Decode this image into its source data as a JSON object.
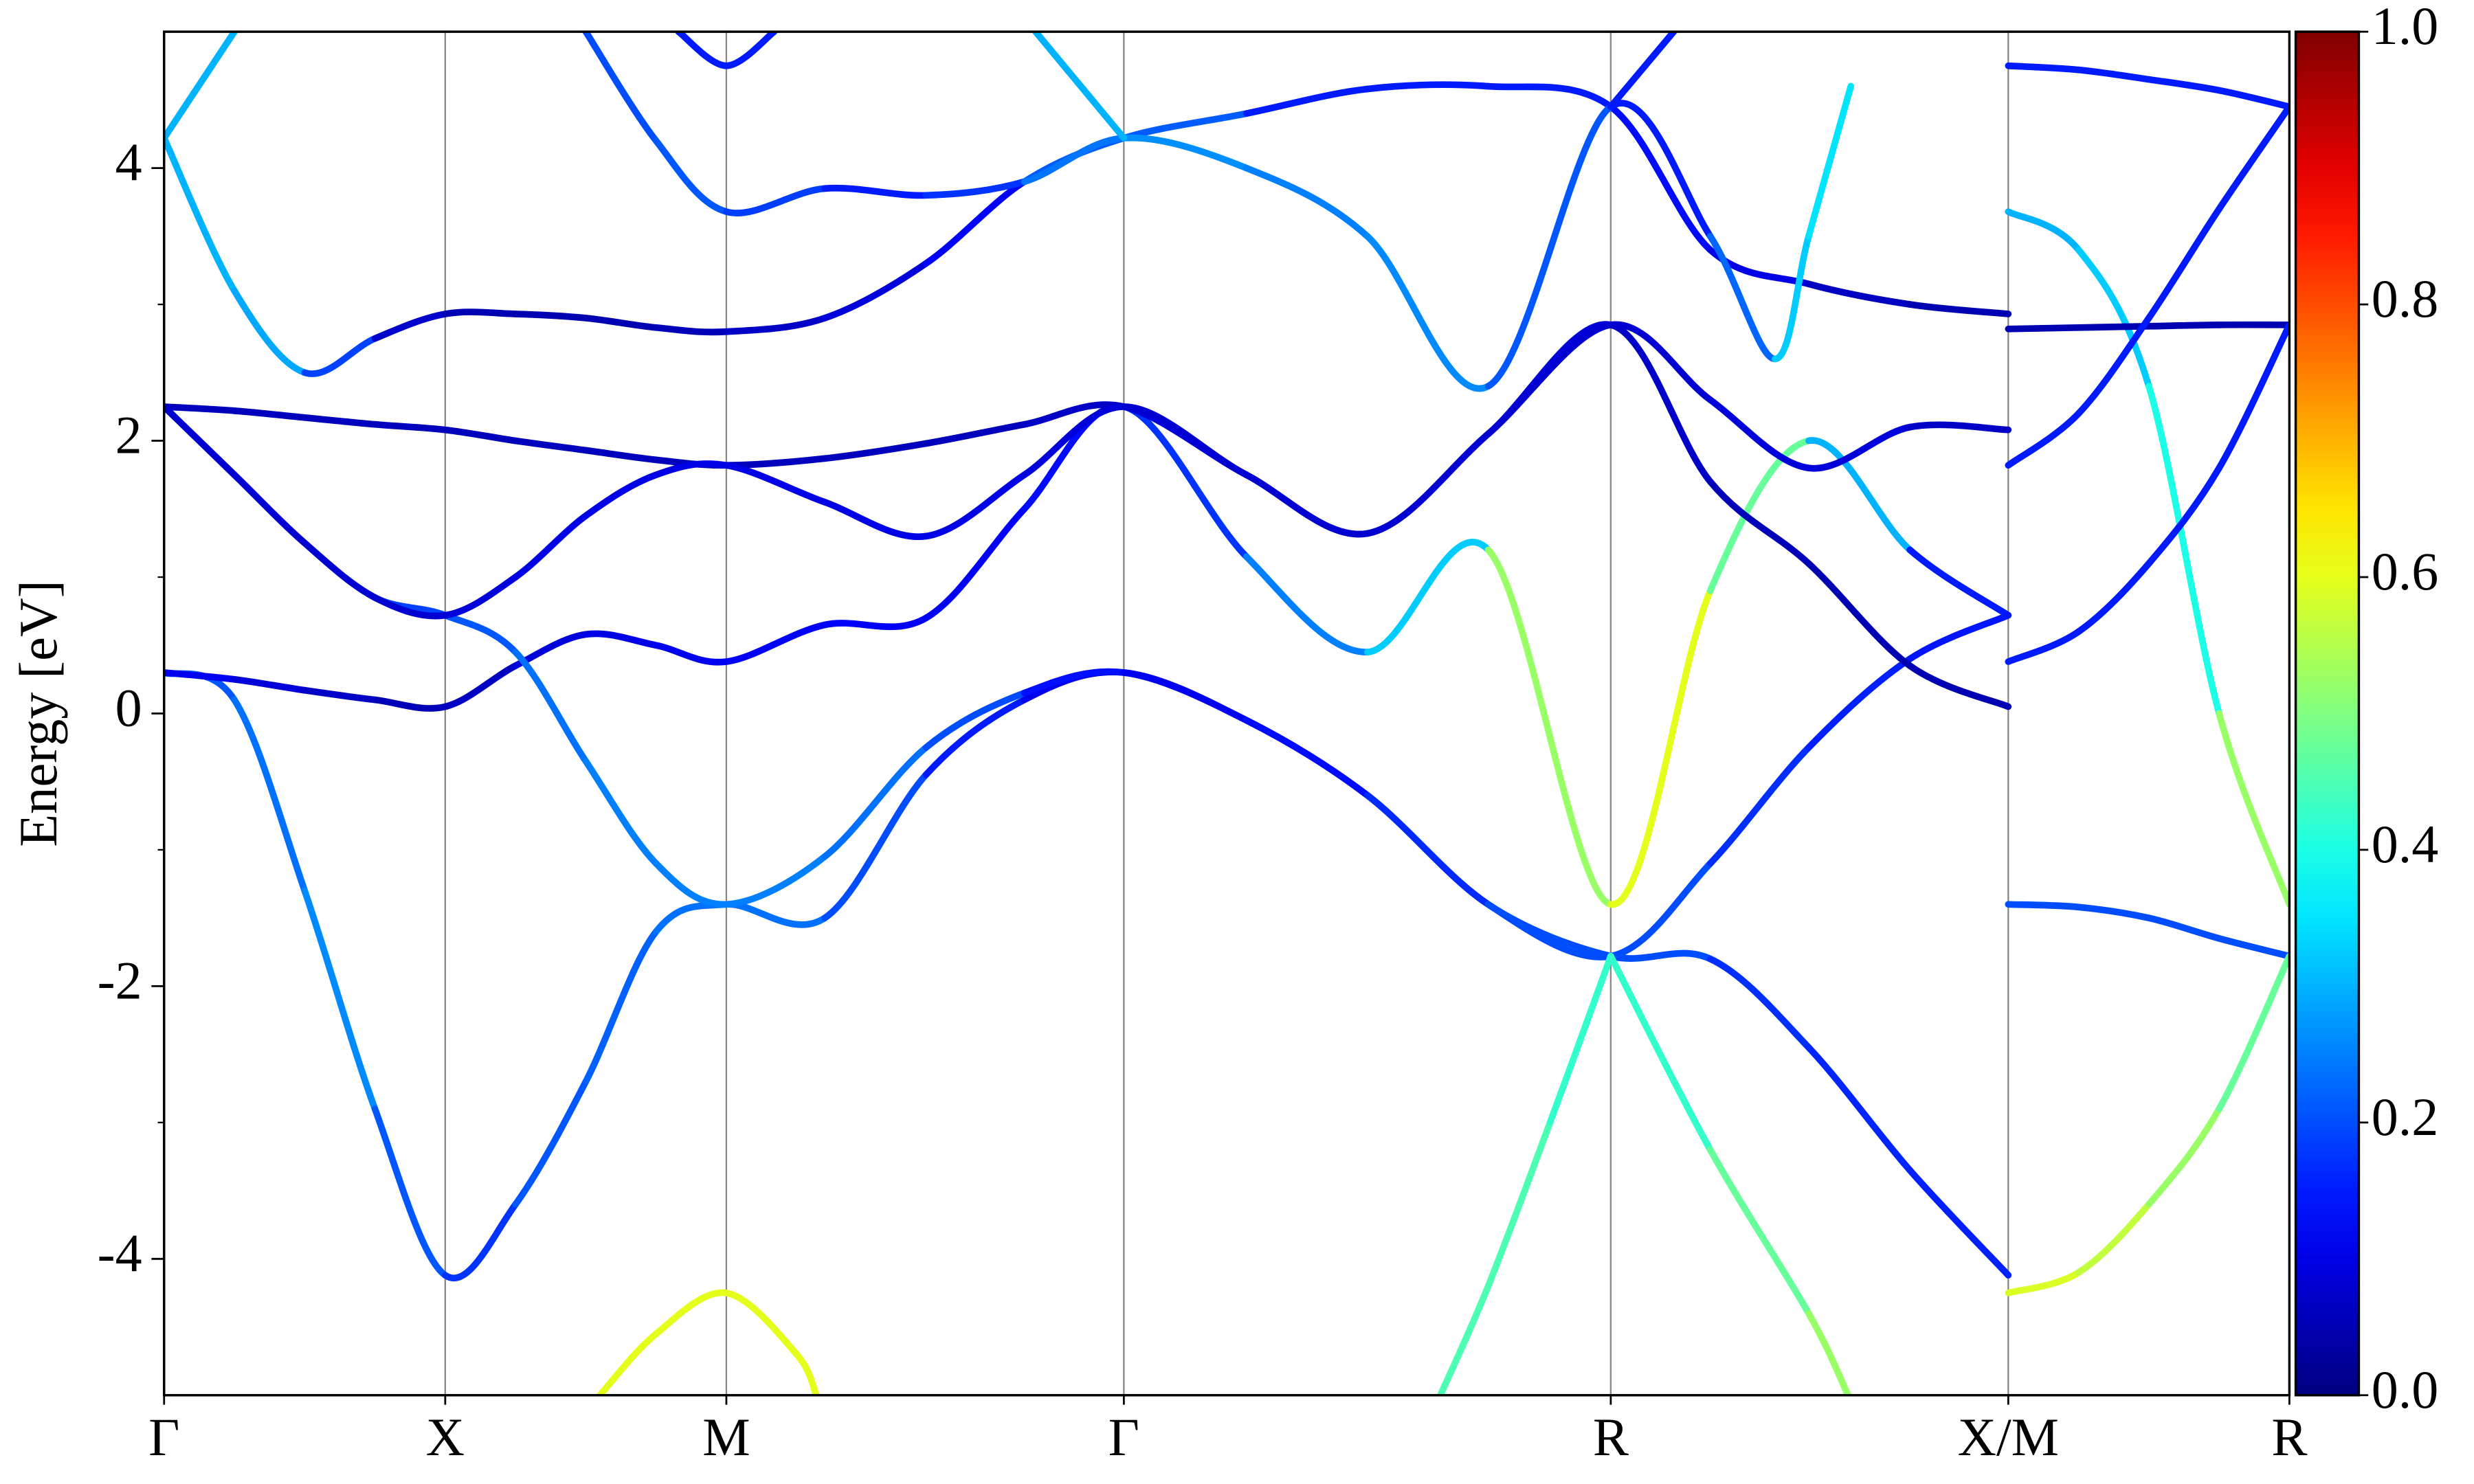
{
  "chart_data": {
    "type": "bands",
    "ylabel": "Energy [eV]",
    "xlim": [
      0,
      7.56
    ],
    "ylim": [
      -5,
      5
    ],
    "xticks": [
      {
        "value": 0,
        "label": "Γ"
      },
      {
        "value": 1,
        "label": "X"
      },
      {
        "value": 2,
        "label": "M"
      },
      {
        "value": 3.414,
        "label": "Γ"
      },
      {
        "value": 5.146,
        "label": "R"
      },
      {
        "value": 6.56,
        "label": "X/M"
      },
      {
        "value": 7.56,
        "label": "R"
      }
    ],
    "yticks": [
      -4,
      -2,
      0,
      2,
      4
    ],
    "yminorticks": [
      -3,
      -1,
      1,
      3
    ],
    "xgrid": true,
    "colormap": "jet",
    "clim": [
      0,
      1
    ],
    "cticks": [
      {
        "value": 0,
        "label": "0.0"
      },
      0.2,
      0.4,
      0.6,
      0.8,
      {
        "value": 1,
        "label": "1.0"
      }
    ],
    "series": [
      {
        "x": [
          0,
          0.25,
          0.5,
          0.75,
          1,
          1.25,
          1.5,
          1.75,
          2,
          2.35,
          2.71,
          3.06,
          3.414,
          3.85,
          4.28,
          4.71,
          5.146,
          5.5,
          5.85,
          6.21,
          6.56
        ],
        "values": [
          0.3,
          0.1,
          -1.3,
          -2.9,
          -4.12,
          -3.6,
          -2.7,
          -1.6,
          -1.4,
          -1.5,
          -0.45,
          0.1,
          0.3,
          -0.05,
          -0.6,
          -1.4,
          -1.78,
          -1.8,
          -2.45,
          -3.35,
          -4.12
        ],
        "weights": [
          0.2,
          0.22,
          0.25,
          0.27,
          0.15,
          0.2,
          0.22,
          0.22,
          0.25,
          0.22,
          0.18,
          0.12,
          0.1,
          0.12,
          0.15,
          0.18,
          0.22,
          0.18,
          0.16,
          0.16,
          0.15
        ]
      },
      {
        "x": [
          0,
          0.25,
          0.5,
          0.75,
          1,
          1.25,
          1.5,
          1.75,
          2,
          2.35,
          2.71,
          3.06,
          3.414,
          3.85,
          4.28,
          4.71,
          5.146,
          5.5,
          5.85,
          6.21,
          6.56
        ],
        "values": [
          0.3,
          0.25,
          0.17,
          0.1,
          0.05,
          0.35,
          0.58,
          0.5,
          0.38,
          0.65,
          0.7,
          1.5,
          2.25,
          1.15,
          0.45,
          1.2,
          -1.4,
          0.9,
          2.0,
          1.2,
          0.72
        ],
        "weights": [
          0.12,
          0.1,
          0.08,
          0.06,
          0.05,
          0.08,
          0.1,
          0.1,
          0.12,
          0.12,
          0.12,
          0.12,
          0.15,
          0.2,
          0.3,
          0.35,
          0.7,
          0.5,
          0.45,
          0.15,
          0.15
        ]
      },
      {
        "x": [
          0,
          0.25,
          0.5,
          0.75,
          1,
          1.25,
          1.5,
          1.75,
          2,
          2.35,
          2.71,
          3.06,
          3.414,
          3.85,
          4.28,
          4.71,
          5.146,
          5.5,
          5.85,
          6.21,
          6.56
        ],
        "values": [
          2.25,
          1.75,
          1.25,
          0.85,
          0.72,
          0.45,
          -0.35,
          -1.1,
          -1.4,
          -1.05,
          -0.25,
          0.15,
          0.3,
          -0.05,
          -0.6,
          -1.4,
          -1.78,
          -1.1,
          -0.25,
          0.4,
          0.72
        ],
        "weights": [
          0.1,
          0.12,
          0.15,
          0.18,
          0.2,
          0.22,
          0.25,
          0.25,
          0.25,
          0.25,
          0.22,
          0.18,
          0.1,
          0.12,
          0.15,
          0.18,
          0.22,
          0.18,
          0.16,
          0.15,
          0.14
        ]
      },
      {
        "x": [
          0,
          0.25,
          0.5,
          0.75,
          1,
          1.25,
          1.5,
          1.75,
          2,
          2.35,
          2.71,
          3.06,
          3.414,
          3.85,
          4.28,
          4.71,
          5.146,
          5.5,
          5.85,
          6.21,
          6.56
        ],
        "values": [
          2.25,
          2.22,
          2.17,
          2.12,
          2.08,
          2.0,
          1.93,
          1.86,
          1.82,
          1.87,
          1.98,
          2.12,
          2.25,
          1.75,
          1.32,
          2.05,
          2.85,
          1.7,
          1.1,
          0.35,
          0.05
        ],
        "weights": [
          0.06,
          0.06,
          0.06,
          0.06,
          0.06,
          0.06,
          0.06,
          0.06,
          0.06,
          0.06,
          0.06,
          0.06,
          0.08,
          0.1,
          0.1,
          0.1,
          0.08,
          0.06,
          0.05,
          0.05,
          0.05
        ]
      },
      {
        "x": [
          0,
          0.25,
          0.5,
          0.75,
          1,
          1.25,
          1.5,
          1.75,
          2,
          2.35,
          2.71,
          3.06,
          3.414,
          3.85,
          4.28,
          4.71,
          5.146,
          5.5,
          5.85,
          6.21,
          6.56
        ],
        "values": [
          2.25,
          1.75,
          1.25,
          0.85,
          0.72,
          1.0,
          1.45,
          1.75,
          1.82,
          1.55,
          1.3,
          1.75,
          2.25,
          1.75,
          1.32,
          2.05,
          2.85,
          2.3,
          1.8,
          2.1,
          2.08
        ],
        "weights": [
          0.08,
          0.08,
          0.08,
          0.08,
          0.08,
          0.1,
          0.1,
          0.1,
          0.1,
          0.1,
          0.1,
          0.1,
          0.08,
          0.08,
          0.08,
          0.08,
          0.08,
          0.08,
          0.1,
          0.08,
          0.06
        ]
      },
      {
        "x": [
          0,
          0.25,
          0.5,
          0.75,
          1,
          1.25,
          1.5,
          1.75,
          2,
          2.35,
          2.71,
          3.06,
          3.414,
          3.85,
          4.28,
          4.71,
          5.146,
          5.5,
          5.85,
          6.21,
          6.56
        ],
        "values": [
          4.22,
          3.1,
          2.5,
          2.75,
          2.93,
          2.93,
          2.9,
          2.83,
          2.8,
          2.9,
          3.3,
          3.9,
          4.22,
          4.4,
          4.58,
          4.6,
          4.45,
          3.4,
          3.15,
          3.0,
          2.93
        ],
        "weights": [
          0.3,
          0.3,
          0.28,
          0.1,
          0.05,
          0.05,
          0.05,
          0.05,
          0.06,
          0.08,
          0.1,
          0.15,
          0.28,
          0.15,
          0.15,
          0.15,
          0.15,
          0.12,
          0.08,
          0.05,
          0.05
        ]
      },
      {
        "x": [
          1.5,
          1.75,
          2,
          2.35,
          2.71,
          3.06,
          3.414,
          3.85,
          4.28,
          4.71,
          5.146,
          5.5,
          5.73,
          5.85,
          6.0
        ],
        "values": [
          5.0,
          4.2,
          3.68,
          3.85,
          3.8,
          3.9,
          4.22,
          4.0,
          3.5,
          2.4,
          4.45,
          3.5,
          2.6,
          3.5,
          4.6
        ],
        "weights": [
          0.2,
          0.2,
          0.22,
          0.15,
          0.15,
          0.2,
          0.28,
          0.25,
          0.25,
          0.27,
          0.15,
          0.15,
          0.3,
          0.35,
          0.35
        ]
      },
      {
        "x": [
          0,
          0.25
        ],
        "values": [
          4.22,
          5.0
        ],
        "weights": [
          0.3,
          0.3
        ]
      },
      {
        "x": [
          1.83,
          2,
          2.17
        ],
        "values": [
          5.0,
          4.75,
          5.0
        ],
        "weights": [
          0.15,
          0.15,
          0.15
        ]
      },
      {
        "x": [
          3.1,
          3.414
        ],
        "values": [
          5.0,
          4.22
        ],
        "weights": [
          0.3,
          0.3
        ]
      },
      {
        "x": [
          5.146,
          5.37
        ],
        "values": [
          4.45,
          5.0
        ],
        "weights": [
          0.15,
          0.15
        ]
      },
      {
        "x": [
          1.55,
          1.75,
          2,
          2.25,
          2.32
        ],
        "values": [
          -5.0,
          -4.55,
          -4.25,
          -4.7,
          -5.0
        ],
        "weights": [
          0.6,
          0.6,
          0.6,
          0.6,
          0.6
        ]
      },
      {
        "x": [
          4.54,
          4.71,
          4.93,
          5.146
        ],
        "values": [
          -5.0,
          -4.2,
          -3.0,
          -1.78
        ],
        "weights": [
          0.45,
          0.45,
          0.45,
          0.4
        ]
      },
      {
        "x": [
          5.146,
          5.5,
          5.85,
          5.99
        ],
        "values": [
          -1.78,
          -3.2,
          -4.4,
          -5.0
        ],
        "weights": [
          0.4,
          0.45,
          0.5,
          0.55
        ]
      },
      {
        "x": [
          6.56,
          6.81,
          7.06,
          7.31,
          7.56
        ],
        "values": [
          4.75,
          4.72,
          4.65,
          4.57,
          4.45
        ],
        "weights": [
          0.15,
          0.15,
          0.15,
          0.15,
          0.15
        ]
      },
      {
        "x": [
          6.56,
          6.81,
          7.06,
          7.31,
          7.56
        ],
        "values": [
          3.68,
          3.4,
          2.4,
          0,
          -1.4
        ],
        "weights": [
          0.3,
          0.3,
          0.35,
          0.45,
          0.6
        ]
      },
      {
        "x": [
          6.56,
          6.81,
          7.06,
          7.31,
          7.56
        ],
        "values": [
          2.82,
          2.83,
          2.84,
          2.85,
          2.85
        ],
        "weights": [
          0.05,
          0.05,
          0.05,
          0.05,
          0.05
        ]
      },
      {
        "x": [
          6.56,
          6.81,
          7.06,
          7.31,
          7.56
        ],
        "values": [
          1.82,
          2.2,
          2.9,
          3.7,
          4.45
        ],
        "weights": [
          0.15,
          0.15,
          0.15,
          0.15,
          0.15
        ]
      },
      {
        "x": [
          6.56,
          6.81,
          7.06,
          7.31,
          7.56
        ],
        "values": [
          0.38,
          0.6,
          1.1,
          1.8,
          2.85
        ],
        "weights": [
          0.15,
          0.15,
          0.15,
          0.15,
          0.15
        ]
      },
      {
        "x": [
          6.56,
          6.81,
          7.06,
          7.31,
          7.56
        ],
        "values": [
          -1.4,
          -1.42,
          -1.5,
          -1.65,
          -1.78
        ],
        "weights": [
          0.2,
          0.2,
          0.2,
          0.2,
          0.2
        ]
      },
      {
        "x": [
          6.56,
          6.81,
          7.06,
          7.31,
          7.56
        ],
        "values": [
          -4.25,
          -4.1,
          -3.6,
          -2.9,
          -1.78
        ],
        "weights": [
          0.6,
          0.58,
          0.55,
          0.5,
          0.45
        ]
      }
    ]
  }
}
